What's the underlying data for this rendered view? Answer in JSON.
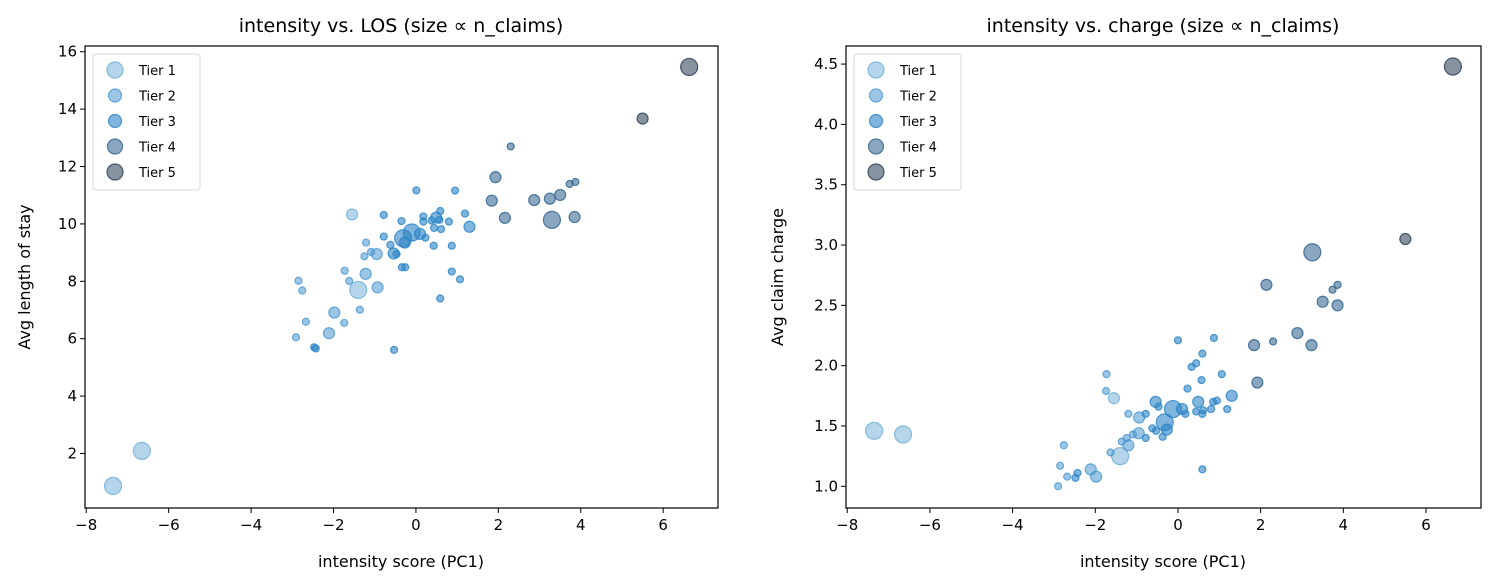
{
  "chart_data": [
    {
      "type": "scatter",
      "title": "intensity vs. LOS (size ∝ n_claims)",
      "xlabel": "intensity score (PC1)",
      "ylabel": "Avg length of stay",
      "xlim": [
        -8.03,
        7.33
      ],
      "ylim": [
        0.1,
        16.2
      ],
      "xticks": [
        -8,
        -6,
        -4,
        -2,
        0,
        2,
        4,
        6
      ],
      "yticks": [
        2,
        4,
        6,
        8,
        10,
        12,
        14,
        16
      ],
      "ytick_decimals": 0,
      "grid": false,
      "legend": {
        "placement": "top-left",
        "entries": [
          "Tier 1",
          "Tier 2",
          "Tier 3",
          "Tier 4",
          "Tier 5"
        ]
      },
      "point_fields": [
        "x",
        "y",
        "tier",
        "relative_size"
      ],
      "points": [
        [
          -7.35,
          0.87,
          1,
          3
        ],
        [
          -6.65,
          2.09,
          1,
          3
        ],
        [
          -1.4,
          7.7,
          1,
          3
        ],
        [
          -2.91,
          6.05,
          2,
          1
        ],
        [
          -2.85,
          8.02,
          2,
          1
        ],
        [
          -2.76,
          7.68,
          2,
          1
        ],
        [
          -2.67,
          6.59,
          2,
          1
        ],
        [
          -2.47,
          5.7,
          3,
          1
        ],
        [
          -2.43,
          5.66,
          3,
          1
        ],
        [
          -2.11,
          6.19,
          2,
          2
        ],
        [
          -1.98,
          6.91,
          2,
          2
        ],
        [
          -1.74,
          6.55,
          2,
          1
        ],
        [
          -1.73,
          8.37,
          2,
          1
        ],
        [
          -1.62,
          8.01,
          2,
          1
        ],
        [
          -1.55,
          10.33,
          1,
          2
        ],
        [
          -1.36,
          7.01,
          2,
          1
        ],
        [
          -1.25,
          8.87,
          2,
          1
        ],
        [
          -1.22,
          8.26,
          2,
          2
        ],
        [
          -1.21,
          9.35,
          2,
          1
        ],
        [
          -1.09,
          9.02,
          2,
          1
        ],
        [
          -0.95,
          8.95,
          2,
          2
        ],
        [
          -0.93,
          7.79,
          2,
          2
        ],
        [
          -0.78,
          10.31,
          3,
          1
        ],
        [
          -0.78,
          9.56,
          3,
          1
        ],
        [
          -0.62,
          9.27,
          3,
          1
        ],
        [
          -0.54,
          8.97,
          3,
          2
        ],
        [
          -0.53,
          5.61,
          3,
          1
        ],
        [
          -0.47,
          8.95,
          3,
          1
        ],
        [
          -0.35,
          10.1,
          3,
          1
        ],
        [
          -0.34,
          8.49,
          3,
          1
        ],
        [
          -0.31,
          9.5,
          3,
          3
        ],
        [
          -0.27,
          9.35,
          3,
          2
        ],
        [
          -0.26,
          8.49,
          3,
          1
        ],
        [
          -0.1,
          9.7,
          3,
          3
        ],
        [
          0.01,
          11.17,
          3,
          1
        ],
        [
          0.1,
          9.65,
          3,
          2
        ],
        [
          0.18,
          10.26,
          3,
          1
        ],
        [
          0.18,
          10.08,
          3,
          1
        ],
        [
          0.23,
          9.52,
          3,
          1
        ],
        [
          0.38,
          10.12,
          3,
          1
        ],
        [
          0.43,
          9.24,
          3,
          1
        ],
        [
          0.44,
          9.86,
          3,
          1
        ],
        [
          0.49,
          10.22,
          3,
          2
        ],
        [
          0.57,
          10.14,
          3,
          1
        ],
        [
          0.59,
          10.45,
          3,
          1
        ],
        [
          0.59,
          7.4,
          3,
          1
        ],
        [
          0.61,
          9.82,
          3,
          1
        ],
        [
          0.8,
          10.08,
          3,
          1
        ],
        [
          0.87,
          9.24,
          3,
          1
        ],
        [
          0.87,
          8.34,
          3,
          1
        ],
        [
          0.95,
          11.16,
          3,
          1
        ],
        [
          1.07,
          8.07,
          3,
          1
        ],
        [
          1.19,
          10.36,
          3,
          1
        ],
        [
          1.3,
          9.9,
          3,
          2
        ],
        [
          1.84,
          10.81,
          4,
          2
        ],
        [
          1.93,
          11.63,
          4,
          2
        ],
        [
          2.16,
          10.21,
          4,
          2
        ],
        [
          2.3,
          12.7,
          4,
          1
        ],
        [
          2.87,
          10.83,
          4,
          2
        ],
        [
          3.25,
          10.88,
          4,
          2
        ],
        [
          3.3,
          10.14,
          4,
          3
        ],
        [
          3.5,
          11.01,
          4,
          2
        ],
        [
          3.73,
          11.39,
          4,
          1
        ],
        [
          3.85,
          10.24,
          4,
          2
        ],
        [
          3.87,
          11.46,
          4,
          1
        ],
        [
          5.5,
          13.67,
          5,
          2
        ],
        [
          6.63,
          15.47,
          5,
          3
        ]
      ]
    },
    {
      "type": "scatter",
      "title": "intensity vs. charge (size ∝ n_claims)",
      "xlabel": "intensity score (PC1)",
      "ylabel": "Avg claim charge",
      "xlim": [
        -8.03,
        7.33
      ],
      "ylim": [
        0.82,
        4.65
      ],
      "xticks": [
        -8,
        -6,
        -4,
        -2,
        0,
        2,
        4,
        6
      ],
      "yticks": [
        1.0,
        1.5,
        2.0,
        2.5,
        3.0,
        3.5,
        4.0,
        4.5
      ],
      "ytick_decimals": 1,
      "grid": false,
      "legend": {
        "placement": "top-left",
        "entries": [
          "Tier 1",
          "Tier 2",
          "Tier 3",
          "Tier 4",
          "Tier 5"
        ]
      },
      "point_fields": [
        "x",
        "y",
        "tier",
        "relative_size"
      ],
      "points": [
        [
          -7.35,
          1.46,
          1,
          3
        ],
        [
          -6.65,
          1.43,
          1,
          3
        ],
        [
          -1.4,
          1.25,
          1,
          3
        ],
        [
          -2.9,
          1.0,
          2,
          1
        ],
        [
          -2.85,
          1.17,
          2,
          1
        ],
        [
          -2.76,
          1.34,
          2,
          1
        ],
        [
          -2.68,
          1.08,
          2,
          1
        ],
        [
          -2.48,
          1.07,
          3,
          1
        ],
        [
          -2.43,
          1.11,
          3,
          1
        ],
        [
          -2.11,
          1.14,
          2,
          2
        ],
        [
          -1.98,
          1.08,
          2,
          2
        ],
        [
          -1.74,
          1.79,
          2,
          1
        ],
        [
          -1.73,
          1.93,
          2,
          1
        ],
        [
          -1.63,
          1.28,
          2,
          1
        ],
        [
          -1.55,
          1.73,
          1,
          2
        ],
        [
          -1.36,
          1.37,
          2,
          1
        ],
        [
          -1.24,
          1.4,
          2,
          1
        ],
        [
          -1.2,
          1.34,
          2,
          2
        ],
        [
          -1.2,
          1.6,
          2,
          1
        ],
        [
          -1.09,
          1.43,
          2,
          1
        ],
        [
          -0.95,
          1.44,
          2,
          2
        ],
        [
          -0.94,
          1.57,
          2,
          2
        ],
        [
          -0.78,
          1.6,
          3,
          1
        ],
        [
          -0.78,
          1.4,
          3,
          1
        ],
        [
          -0.62,
          1.48,
          3,
          1
        ],
        [
          -0.54,
          1.7,
          3,
          2
        ],
        [
          -0.53,
          1.46,
          3,
          1
        ],
        [
          -0.47,
          1.66,
          3,
          1
        ],
        [
          -0.37,
          1.41,
          3,
          1
        ],
        [
          -0.32,
          1.53,
          3,
          3
        ],
        [
          -0.27,
          1.47,
          3,
          2
        ],
        [
          -0.12,
          1.64,
          3,
          3
        ],
        [
          0.0,
          2.21,
          3,
          1
        ],
        [
          0.1,
          1.64,
          3,
          2
        ],
        [
          0.18,
          1.6,
          3,
          1
        ],
        [
          0.23,
          1.81,
          3,
          1
        ],
        [
          0.33,
          1.99,
          3,
          1
        ],
        [
          0.44,
          2.02,
          3,
          1
        ],
        [
          0.44,
          1.62,
          3,
          1
        ],
        [
          0.49,
          1.7,
          3,
          2
        ],
        [
          0.57,
          1.88,
          3,
          1
        ],
        [
          0.59,
          2.1,
          3,
          1
        ],
        [
          0.59,
          1.6,
          3,
          1
        ],
        [
          0.59,
          1.14,
          3,
          1
        ],
        [
          0.61,
          1.63,
          3,
          1
        ],
        [
          0.8,
          1.64,
          3,
          1
        ],
        [
          0.85,
          1.7,
          3,
          1
        ],
        [
          0.87,
          2.23,
          3,
          1
        ],
        [
          0.94,
          1.71,
          3,
          1
        ],
        [
          1.06,
          1.93,
          3,
          1
        ],
        [
          1.19,
          1.64,
          3,
          1
        ],
        [
          1.3,
          1.75,
          3,
          2
        ],
        [
          1.84,
          2.17,
          4,
          2
        ],
        [
          1.92,
          1.86,
          4,
          2
        ],
        [
          2.14,
          2.67,
          4,
          2
        ],
        [
          2.3,
          2.2,
          4,
          1
        ],
        [
          2.89,
          2.27,
          4,
          2
        ],
        [
          3.23,
          2.17,
          4,
          2
        ],
        [
          3.25,
          2.94,
          4,
          3
        ],
        [
          3.5,
          2.53,
          4,
          2
        ],
        [
          3.74,
          2.63,
          4,
          1
        ],
        [
          3.86,
          2.5,
          4,
          2
        ],
        [
          3.86,
          2.67,
          4,
          1
        ],
        [
          5.5,
          3.05,
          5,
          2
        ],
        [
          6.65,
          4.48,
          5,
          3
        ]
      ]
    }
  ],
  "tier_colors": {
    "1": "#6baed6",
    "2": "#4a97cf",
    "3": "#2b83c6",
    "4": "#2c5f8a",
    "5": "#253a50"
  }
}
